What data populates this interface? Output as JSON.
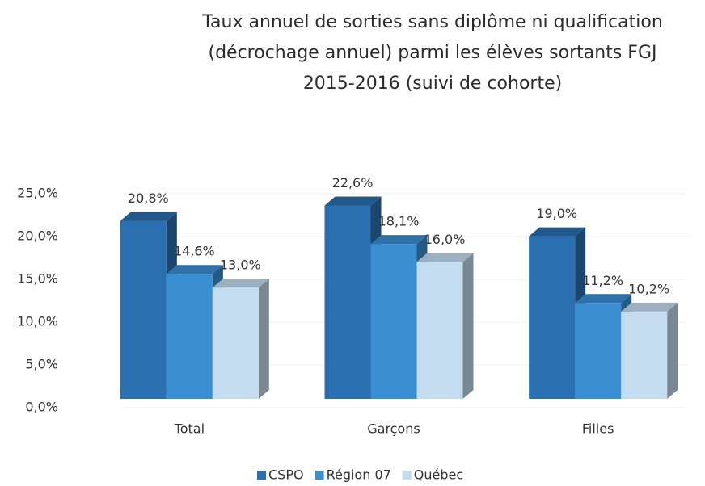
{
  "chart_data": {
    "type": "bar3d",
    "title": [
      "Taux annuel de sorties sans diplôme ni qualification",
      "(décrochage annuel) parmi les élèves sortants FGJ",
      "2015-2016 (suivi de cohorte)"
    ],
    "categories": [
      "Total",
      "Garçons",
      "Filles"
    ],
    "series": [
      {
        "name": "CSPO",
        "color": "#2a6fb0",
        "values": [
          20.8,
          22.6,
          19.0
        ],
        "value_labels": [
          "20,8%",
          "22,6%",
          "19,0%"
        ]
      },
      {
        "name": "Région 07",
        "color": "#3a8fd3",
        "values": [
          14.6,
          18.1,
          11.2
        ],
        "value_labels": [
          "14,6%",
          "18,1%",
          "11,2%"
        ]
      },
      {
        "name": "Québec",
        "color": "#c4dcef",
        "values": [
          13.0,
          16.0,
          10.2
        ],
        "value_labels": [
          "13,0%",
          "16,0%",
          "10,2%"
        ]
      }
    ],
    "ylim": [
      0,
      25
    ],
    "yticks": [
      {
        "value": 0,
        "label": "0,0%"
      },
      {
        "value": 5,
        "label": "5,0%"
      },
      {
        "value": 10,
        "label": "10,0%"
      },
      {
        "value": 15,
        "label": "15,0%"
      },
      {
        "value": 20,
        "label": "20,0%"
      },
      {
        "value": 25,
        "label": "25,0%"
      }
    ],
    "legend": "bottom"
  }
}
